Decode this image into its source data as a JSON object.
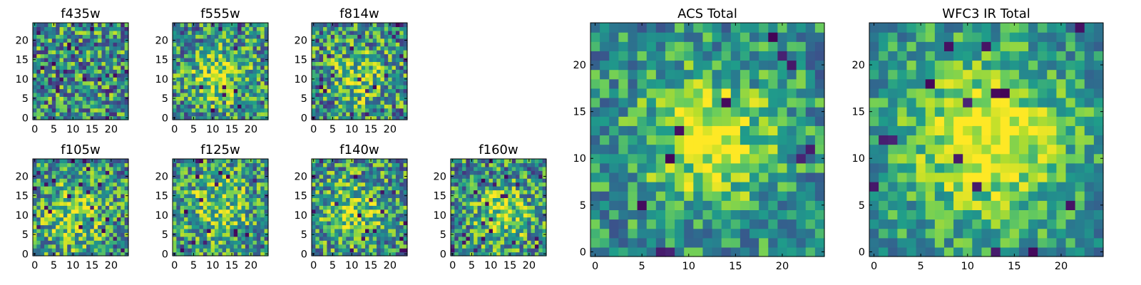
{
  "figure": {
    "description_free": true
  },
  "chart_data": [
    {
      "type": "heatmap",
      "title": "f435w",
      "x_ticks": [
        "0",
        "5",
        "10",
        "15",
        "20"
      ],
      "y_ticks": [
        "0",
        "5",
        "10",
        "15",
        "20"
      ],
      "xlim": [
        -0.5,
        24.5
      ],
      "ylim": [
        -0.5,
        24.5
      ],
      "grid": false,
      "colormap": "viridis",
      "center": [
        12,
        10
      ],
      "peak": 0.0,
      "sigma": 6,
      "noise": 0.55,
      "outliers": 0.02,
      "seed": 3
    },
    {
      "type": "heatmap",
      "title": "f555w",
      "x_ticks": [
        "0",
        "5",
        "10",
        "15",
        "20"
      ],
      "y_ticks": [
        "0",
        "5",
        "10",
        "15",
        "20"
      ],
      "xlim": [
        -0.5,
        24.5
      ],
      "ylim": [
        -0.5,
        24.5
      ],
      "grid": false,
      "colormap": "viridis",
      "center": [
        12,
        11
      ],
      "peak": 0.35,
      "sigma": 5,
      "noise": 0.5,
      "outliers": 0.02,
      "seed": 11
    },
    {
      "type": "heatmap",
      "title": "f814w",
      "x_ticks": [
        "0",
        "5",
        "10",
        "15",
        "20"
      ],
      "y_ticks": [
        "0",
        "5",
        "10",
        "15",
        "20"
      ],
      "xlim": [
        -0.5,
        24.5
      ],
      "ylim": [
        -0.5,
        24.5
      ],
      "grid": false,
      "colormap": "viridis",
      "center": [
        12,
        10
      ],
      "peak": 0.3,
      "sigma": 5,
      "noise": 0.55,
      "outliers": 0.03,
      "seed": 19
    },
    {
      "type": "heatmap",
      "title": "f105w",
      "x_ticks": [
        "0",
        "5",
        "10",
        "15",
        "20"
      ],
      "y_ticks": [
        "0",
        "5",
        "10",
        "15",
        "20"
      ],
      "xlim": [
        -0.5,
        24.5
      ],
      "ylim": [
        -0.5,
        24.5
      ],
      "grid": false,
      "colormap": "viridis",
      "center": [
        10,
        10
      ],
      "peak": 0.3,
      "sigma": 6,
      "noise": 0.5,
      "outliers": 0.03,
      "seed": 27
    },
    {
      "type": "heatmap",
      "title": "f125w",
      "x_ticks": [
        "0",
        "5",
        "10",
        "15",
        "20"
      ],
      "y_ticks": [
        "0",
        "5",
        "10",
        "15",
        "20"
      ],
      "xlim": [
        -0.5,
        24.5
      ],
      "ylim": [
        -0.5,
        24.5
      ],
      "grid": false,
      "colormap": "viridis",
      "center": [
        12,
        12
      ],
      "peak": 0.3,
      "sigma": 6,
      "noise": 0.5,
      "outliers": 0.03,
      "seed": 35
    },
    {
      "type": "heatmap",
      "title": "f140w",
      "x_ticks": [
        "0",
        "5",
        "10",
        "15",
        "20"
      ],
      "y_ticks": [
        "0",
        "5",
        "10",
        "15",
        "20"
      ],
      "xlim": [
        -0.5,
        24.5
      ],
      "ylim": [
        -0.5,
        24.5
      ],
      "grid": false,
      "colormap": "viridis",
      "center": [
        11,
        11
      ],
      "peak": 0.3,
      "sigma": 6,
      "noise": 0.5,
      "outliers": 0.03,
      "seed": 43
    },
    {
      "type": "heatmap",
      "title": "f160w",
      "x_ticks": [
        "0",
        "5",
        "10",
        "15",
        "20"
      ],
      "y_ticks": [
        "0",
        "5",
        "10",
        "15",
        "20"
      ],
      "xlim": [
        -0.5,
        24.5
      ],
      "ylim": [
        -0.5,
        24.5
      ],
      "grid": false,
      "colormap": "viridis",
      "center": [
        13,
        10
      ],
      "peak": 0.35,
      "sigma": 5,
      "noise": 0.5,
      "outliers": 0.03,
      "seed": 51
    },
    {
      "type": "heatmap",
      "title": "ACS Total",
      "x_ticks": [
        "0",
        "5",
        "10",
        "15",
        "20"
      ],
      "y_ticks": [
        "0",
        "5",
        "10",
        "15",
        "20"
      ],
      "xlim": [
        -0.5,
        24.5
      ],
      "ylim": [
        -0.5,
        24.5
      ],
      "grid": false,
      "colormap": "viridis",
      "center": [
        12,
        12
      ],
      "peak": 0.45,
      "sigma": 5,
      "noise": 0.35,
      "outliers": 0.02,
      "seed": 59
    },
    {
      "type": "heatmap",
      "title": "WFC3 IR Total",
      "x_ticks": [
        "0",
        "5",
        "10",
        "15",
        "20"
      ],
      "y_ticks": [
        "0",
        "5",
        "10",
        "15",
        "20"
      ],
      "xlim": [
        -0.5,
        24.5
      ],
      "ylim": [
        -0.5,
        24.5
      ],
      "grid": false,
      "colormap": "viridis",
      "center": [
        12,
        12
      ],
      "peak": 0.5,
      "sigma": 6,
      "noise": 0.3,
      "outliers": 0.02,
      "seed": 67
    }
  ]
}
